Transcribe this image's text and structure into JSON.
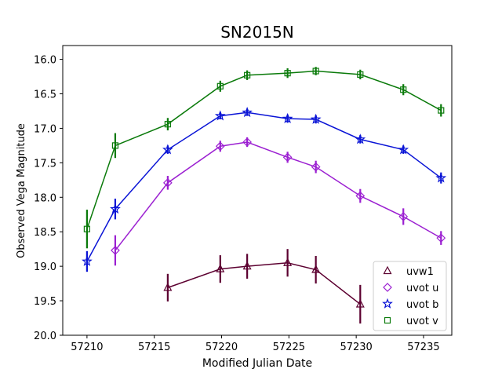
{
  "chart_data": {
    "type": "line",
    "title": "SN2015N",
    "xlabel": "Modified Julian Date",
    "ylabel": "Observed Vega Magnitude",
    "xlim": [
      57208.2,
      57237.1
    ],
    "ylim": [
      20.0,
      15.8
    ],
    "y_inverted": true,
    "xticks": [
      57210,
      57215,
      57220,
      57225,
      57230,
      57235
    ],
    "xtick_labels": [
      "57210",
      "57215",
      "57220",
      "57225",
      "57230",
      "57235"
    ],
    "yticks": [
      16.0,
      16.5,
      17.0,
      17.5,
      18.0,
      18.5,
      19.0,
      19.5,
      20.0
    ],
    "ytick_labels": [
      "16.0",
      "16.5",
      "17.0",
      "17.5",
      "18.0",
      "18.5",
      "19.0",
      "19.5",
      "20.0"
    ],
    "grid": false,
    "legend_position": "lower right",
    "series": [
      {
        "name": "uvw1",
        "color": "#5c0030",
        "marker": "triangle",
        "x": [
          57216.0,
          57219.9,
          57221.9,
          57224.9,
          57227.0,
          57230.3
        ],
        "y": [
          19.31,
          19.04,
          19.0,
          18.95,
          19.05,
          19.55
        ],
        "err": [
          0.2,
          0.2,
          0.18,
          0.2,
          0.2,
          0.28
        ]
      },
      {
        "name": "uvot u",
        "color": "#9b1fd1",
        "marker": "diamond",
        "x": [
          57212.1,
          57216.0,
          57219.9,
          57221.9,
          57224.9,
          57227.0,
          57230.3,
          57233.5,
          57236.3
        ],
        "y": [
          18.77,
          17.79,
          17.26,
          17.2,
          17.42,
          17.56,
          17.98,
          18.28,
          18.59
        ],
        "err": [
          0.22,
          0.1,
          0.08,
          0.07,
          0.08,
          0.09,
          0.1,
          0.12,
          0.1
        ]
      },
      {
        "name": "uvot b",
        "color": "#0a14d6",
        "marker": "star",
        "x": [
          57210.0,
          57212.1,
          57216.0,
          57219.9,
          57221.9,
          57224.9,
          57227.0,
          57230.3,
          57233.5,
          57236.3
        ],
        "y": [
          18.93,
          18.17,
          17.31,
          16.82,
          16.77,
          16.86,
          16.87,
          17.16,
          17.31,
          17.72
        ],
        "err": [
          0.15,
          0.15,
          0.06,
          0.05,
          0.05,
          0.06,
          0.06,
          0.06,
          0.06,
          0.08
        ]
      },
      {
        "name": "uvot v",
        "color": "#0a7a0a",
        "marker": "square",
        "x": [
          57210.0,
          57212.1,
          57216.0,
          57219.9,
          57221.9,
          57224.9,
          57227.0,
          57230.3,
          57233.5,
          57236.3
        ],
        "y": [
          18.46,
          17.25,
          16.94,
          16.39,
          16.23,
          16.2,
          16.17,
          16.22,
          16.44,
          16.74
        ],
        "err": [
          0.28,
          0.18,
          0.09,
          0.08,
          0.07,
          0.07,
          0.06,
          0.07,
          0.08,
          0.09
        ]
      }
    ]
  }
}
